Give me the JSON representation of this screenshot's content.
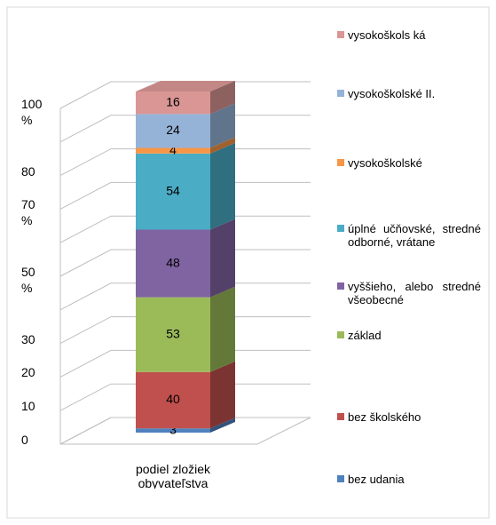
{
  "chart_data": {
    "type": "stacked_bar_3d",
    "categories": [
      "podiel zložiek obyvateľstva"
    ],
    "series": [
      {
        "name": "bez udania",
        "color": "#4f81bd",
        "values": [
          3
        ],
        "value_labels": [
          "3"
        ]
      },
      {
        "name": "bez školského",
        "color": "#c0504d",
        "values": [
          40
        ],
        "value_labels": [
          "40"
        ]
      },
      {
        "name": "základ",
        "color": "#9bbb59",
        "values": [
          53
        ],
        "value_labels": [
          "53"
        ]
      },
      {
        "name": "vyššieho, alebo stredné všeobecné",
        "color": "#8064a2",
        "values": [
          48
        ],
        "value_labels": [
          "48"
        ]
      },
      {
        "name": "úplné učňovské, stredné odborné, vrátane",
        "color": "#4bacc6",
        "values": [
          54
        ],
        "value_labels": [
          "54"
        ]
      },
      {
        "name": "vysokoškolské",
        "color": "#f79646",
        "values": [
          4
        ],
        "value_labels": [
          "4"
        ]
      },
      {
        "name": "vysokoškolské II.",
        "color": "#95b3d7",
        "values": [
          24
        ],
        "value_labels": [
          "24"
        ]
      },
      {
        "name": "vysokoškols ká",
        "color": "#d99694",
        "values": [
          16
        ],
        "value_labels": [
          "16"
        ]
      }
    ],
    "ylim": [
      0,
      100
    ],
    "yticks": [
      {
        "value": 0,
        "label": "0"
      },
      {
        "value": 10,
        "label": "10"
      },
      {
        "value": 20,
        "label": "20"
      },
      {
        "value": 30,
        "label": "30"
      },
      {
        "value": 40,
        "label": null
      },
      {
        "value": 50,
        "label": "50 %"
      },
      {
        "value": 60,
        "label": null
      },
      {
        "value": 70,
        "label": "70 %"
      },
      {
        "value": 80,
        "label": "80"
      },
      {
        "value": 90,
        "label": null
      },
      {
        "value": 100,
        "label": "100 %"
      }
    ],
    "grid": true
  }
}
